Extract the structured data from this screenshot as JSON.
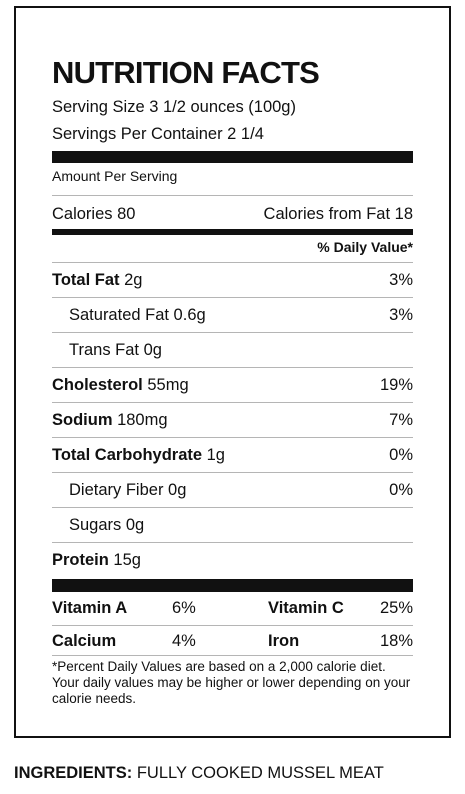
{
  "title": "NUTRITION FACTS",
  "serving_size": "Serving Size 3 1/2 ounces (100g)",
  "servings_per_container": "Servings Per Container 2 1/4",
  "amount_per_serving": "Amount Per Serving",
  "calories": "Calories 80",
  "calories_from_fat": "Calories from Fat 18",
  "daily_value_header": "% Daily Value*",
  "nutrients": [
    {
      "name": "Total Fat",
      "amount": " 2g",
      "dv": "3%"
    },
    {
      "name": "Saturated Fat 0.6g",
      "amount": "",
      "dv": "3%"
    },
    {
      "name": "Trans Fat 0g",
      "amount": "",
      "dv": ""
    },
    {
      "name": "Cholesterol",
      "amount": " 55mg",
      "dv": "19%"
    },
    {
      "name": "Sodium",
      "amount": " 180mg",
      "dv": "7%"
    },
    {
      "name": "Total Carbohydrate",
      "amount": " 1g",
      "dv": "0%"
    },
    {
      "name": "Dietary Fiber 0g",
      "amount": "",
      "dv": "0%"
    },
    {
      "name": "Sugars 0g",
      "amount": "",
      "dv": ""
    },
    {
      "name": "Protein",
      "amount": " 15g",
      "dv": ""
    }
  ],
  "vitamins": [
    {
      "name": "Vitamin A",
      "dv": "6%"
    },
    {
      "name": "Vitamin C",
      "dv": "25%"
    },
    {
      "name": "Calcium",
      "dv": "4%"
    },
    {
      "name": "Iron",
      "dv": "18%"
    }
  ],
  "footnote": "*Percent Daily Values are based on a 2,000 calorie diet. Your daily values may be higher or lower depending on your calorie needs.",
  "ingredients_label": "INGREDIENTS:",
  "ingredients_text": " FULLY COOKED MUSSEL MEAT"
}
